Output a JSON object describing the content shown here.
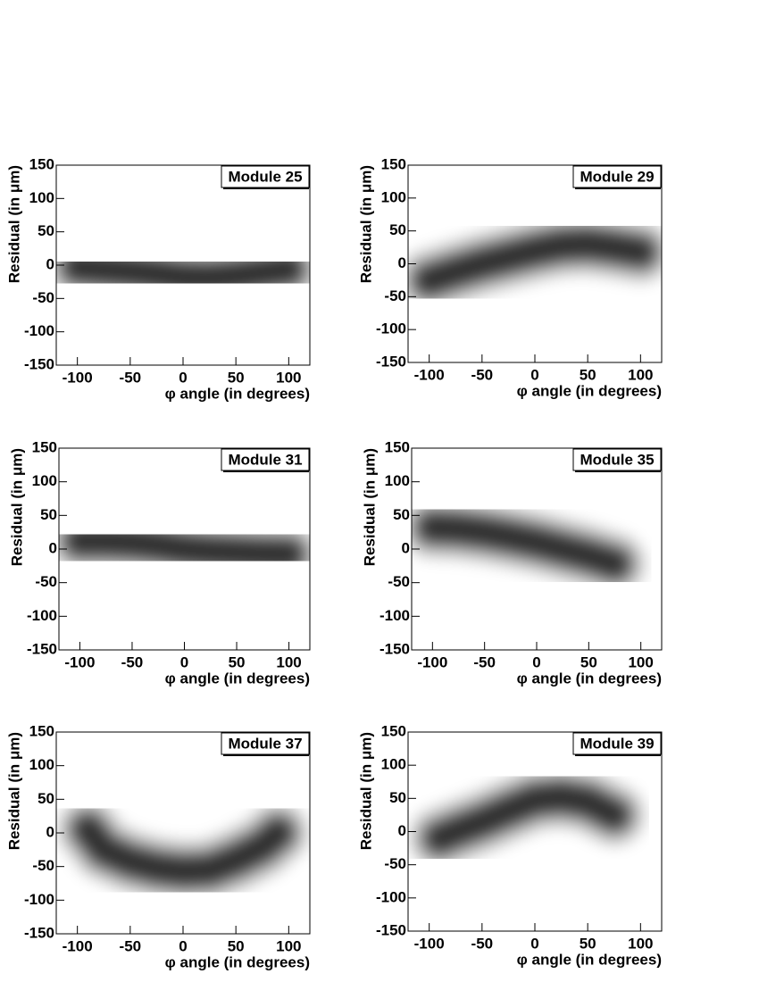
{
  "chart_data": [
    {
      "type": "density",
      "title": "Module 25",
      "xlabel": "φ angle (in degrees)",
      "ylabel": "Residual (in μm)",
      "x": [
        -100,
        -75,
        -50,
        -25,
        0,
        25,
        50,
        75,
        100
      ],
      "values": [
        -3,
        -6,
        -9,
        -13,
        -18,
        -19,
        -16,
        -11,
        -6
      ],
      "color": "#000000",
      "legend": "upper right",
      "xlim": [
        -120,
        120
      ],
      "ylim": [
        -150,
        150
      ],
      "xticks": [
        -100,
        -50,
        0,
        50,
        100
      ],
      "yticks": [
        -150,
        -100,
        -50,
        0,
        50,
        100,
        150
      ]
    },
    {
      "type": "density",
      "title": "Module 29",
      "xlabel": "φ angle (in degrees)",
      "ylabel": "Residual (in μm)",
      "x": [
        -100,
        -75,
        -50,
        -25,
        0,
        25,
        50,
        75,
        100
      ],
      "values": [
        -25,
        -12,
        0,
        10,
        20,
        28,
        30,
        25,
        18
      ],
      "color": "#000000",
      "legend": "upper right",
      "xlim": [
        -120,
        120
      ],
      "ylim": [
        -150,
        150
      ],
      "xticks": [
        -100,
        -50,
        0,
        50,
        100
      ],
      "yticks": [
        -150,
        -100,
        -50,
        0,
        50,
        100,
        150
      ]
    },
    {
      "type": "density",
      "title": "Module 31",
      "xlabel": "φ angle (in degrees)",
      "ylabel": "Residual (in μm)",
      "x": [
        -100,
        -75,
        -50,
        -25,
        0,
        25,
        50,
        75,
        100
      ],
      "values": [
        12,
        12,
        10,
        6,
        0,
        -3,
        -5,
        -7,
        -8
      ],
      "color": "#000000",
      "legend": "upper right",
      "xlim": [
        -120,
        120
      ],
      "ylim": [
        -150,
        150
      ],
      "xticks": [
        -100,
        -50,
        0,
        50,
        100
      ],
      "yticks": [
        -150,
        -100,
        -50,
        0,
        50,
        100,
        150
      ]
    },
    {
      "type": "density",
      "title": "Module 35",
      "xlabel": "φ angle (in degrees)",
      "ylabel": "Residual (in μm)",
      "x": [
        -100,
        -75,
        -50,
        -25,
        0,
        25,
        50,
        75
      ],
      "values": [
        32,
        30,
        25,
        18,
        10,
        0,
        -10,
        -22
      ],
      "color": "#000000",
      "legend": "upper right",
      "xlim": [
        -120,
        120
      ],
      "ylim": [
        -150,
        150
      ],
      "xticks": [
        -100,
        -50,
        0,
        50,
        100
      ],
      "yticks": [
        -150,
        -100,
        -50,
        0,
        50,
        100,
        150
      ]
    },
    {
      "type": "density",
      "title": "Module 37",
      "xlabel": "φ angle (in degrees)",
      "ylabel": "Residual (in μm)",
      "x": [
        -90,
        -75,
        -50,
        -25,
        0,
        25,
        50,
        75,
        90
      ],
      "values": [
        5,
        -25,
        -42,
        -52,
        -57,
        -55,
        -40,
        -20,
        0
      ],
      "color": "#000000",
      "legend": "upper right",
      "xlim": [
        -120,
        120
      ],
      "ylim": [
        -150,
        150
      ],
      "xticks": [
        -100,
        -50,
        0,
        50,
        100
      ],
      "yticks": [
        -150,
        -100,
        -50,
        0,
        50,
        100,
        150
      ]
    },
    {
      "type": "density",
      "title": "Module 39",
      "xlabel": "φ angle (in degrees)",
      "ylabel": "Residual (in μm)",
      "x": [
        -90,
        -75,
        -50,
        -25,
        0,
        25,
        50,
        75
      ],
      "values": [
        -10,
        0,
        15,
        32,
        48,
        52,
        45,
        25
      ],
      "color": "#000000",
      "legend": "upper right",
      "xlim": [
        -120,
        120
      ],
      "ylim": [
        -150,
        150
      ],
      "xticks": [
        -100,
        -50,
        0,
        50,
        100
      ],
      "yticks": [
        -150,
        -100,
        -50,
        0,
        50,
        100,
        150
      ]
    }
  ]
}
